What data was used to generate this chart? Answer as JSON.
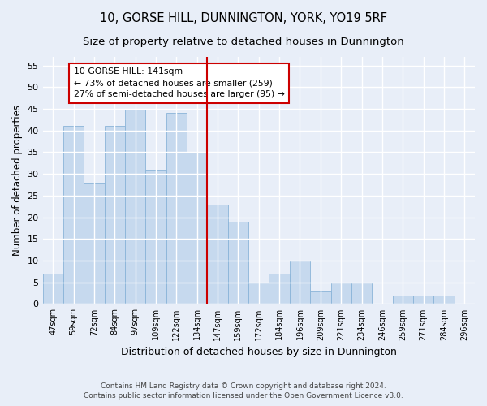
{
  "title": "10, GORSE HILL, DUNNINGTON, YORK, YO19 5RF",
  "subtitle": "Size of property relative to detached houses in Dunnington",
  "xlabel": "Distribution of detached houses by size in Dunnington",
  "ylabel": "Number of detached properties",
  "footnote1": "Contains HM Land Registry data © Crown copyright and database right 2024.",
  "footnote2": "Contains public sector information licensed under the Open Government Licence v3.0.",
  "categories": [
    "47sqm",
    "59sqm",
    "72sqm",
    "84sqm",
    "97sqm",
    "109sqm",
    "122sqm",
    "134sqm",
    "147sqm",
    "159sqm",
    "172sqm",
    "184sqm",
    "196sqm",
    "209sqm",
    "221sqm",
    "234sqm",
    "246sqm",
    "259sqm",
    "271sqm",
    "284sqm",
    "296sqm"
  ],
  "values": [
    7,
    41,
    28,
    41,
    45,
    31,
    44,
    35,
    23,
    19,
    5,
    7,
    10,
    3,
    5,
    5,
    0,
    2,
    2,
    2,
    0
  ],
  "bar_color": "#c6d9ee",
  "bar_edge_color": "#8ab4d8",
  "vline_position": 7.5,
  "vline_color": "#cc0000",
  "annotation_text": "10 GORSE HILL: 141sqm\n← 73% of detached houses are smaller (259)\n27% of semi-detached houses are larger (95) →",
  "annotation_box_color": "#ffffff",
  "annotation_box_edge": "#cc0000",
  "ylim": [
    0,
    57
  ],
  "yticks": [
    0,
    5,
    10,
    15,
    20,
    25,
    30,
    35,
    40,
    45,
    50,
    55
  ],
  "bg_color": "#e8eef8",
  "plot_bg_color": "#e8eef8",
  "grid_color": "#ffffff",
  "title_fontsize": 10.5,
  "subtitle_fontsize": 9.5
}
